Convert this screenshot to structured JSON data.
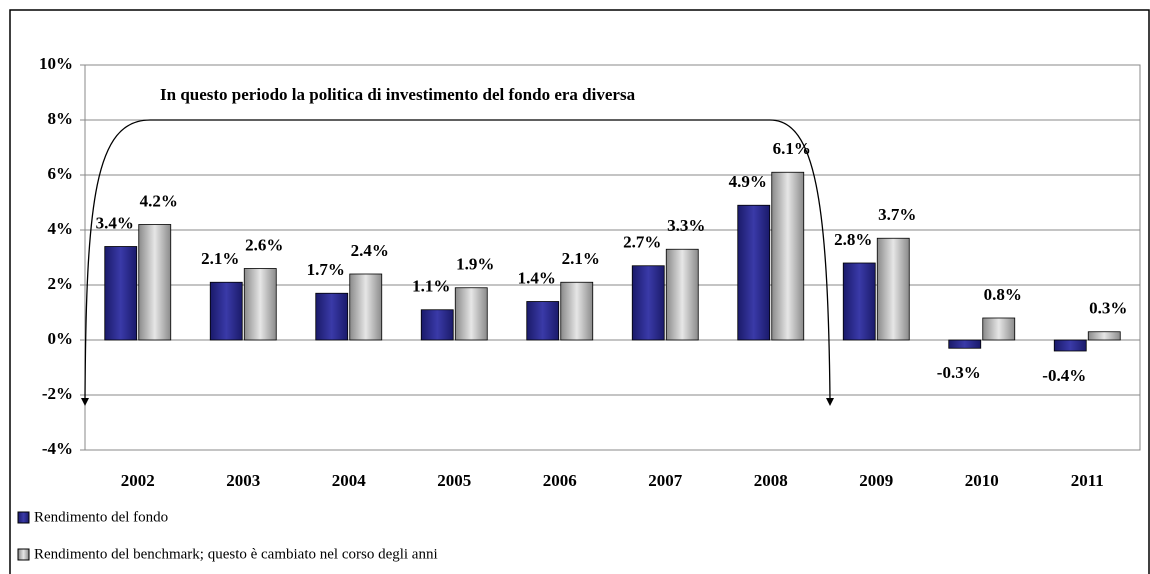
{
  "chart_data": {
    "type": "bar",
    "annotation": "In questo periodo la politica di investimento del fondo era diversa",
    "categories": [
      "2002",
      "2003",
      "2004",
      "2005",
      "2006",
      "2007",
      "2008",
      "2009",
      "2010",
      "2011"
    ],
    "series": [
      {
        "name": "Rendimento del fondo",
        "color": "#2a2a8c",
        "values": [
          3.4,
          2.1,
          1.7,
          1.1,
          1.4,
          2.7,
          4.9,
          2.8,
          -0.3,
          -0.4
        ],
        "value_labels": [
          "3.4%",
          "2.1%",
          "1.7%",
          "1.1%",
          "1.4%",
          "2.7%",
          "4.9%",
          "2.8%",
          "-0.3%",
          "-0.4%"
        ]
      },
      {
        "name": "Rendimento del benchmark; questo è cambiato nel corso degli anni",
        "color": "#b0b0b0",
        "values": [
          4.2,
          2.6,
          2.4,
          1.9,
          2.1,
          3.3,
          6.1,
          3.7,
          0.8,
          0.3
        ],
        "value_labels": [
          "4.2%",
          "2.6%",
          "2.4%",
          "1.9%",
          "2.1%",
          "3.3%",
          "6.1%",
          "3.7%",
          "0.8%",
          "0.3%"
        ]
      }
    ],
    "ylim": [
      -4,
      10
    ],
    "yticks": [
      {
        "value": -4,
        "label": "-4%"
      },
      {
        "value": -2,
        "label": "-2%"
      },
      {
        "value": 0,
        "label": "0%"
      },
      {
        "value": 2,
        "label": "2%"
      },
      {
        "value": 4,
        "label": "4%"
      },
      {
        "value": 6,
        "label": "6%"
      },
      {
        "value": 8,
        "label": "8%"
      },
      {
        "value": 10,
        "label": "10%"
      }
    ],
    "grid": true
  }
}
